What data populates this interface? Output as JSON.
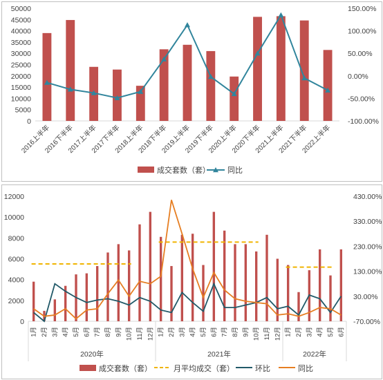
{
  "colors": {
    "bar": "#c0504d",
    "line_top": "#31859c",
    "avg_line": "#f0b400",
    "mom_line": "#215968",
    "yoy_line": "#e67e22",
    "axis": "#d9d9d9",
    "text": "#404040"
  },
  "chart_data": [
    {
      "type": "bar",
      "categories": [
        "2016上半年",
        "2016下半年",
        "2017上半年",
        "2017下半年",
        "2018上半年",
        "2018下半年",
        "2019上半年",
        "2019下半年",
        "2020上半年",
        "2020下半年",
        "2021上半年",
        "2021下半年",
        "2022上半年"
      ],
      "series": [
        {
          "name": "成交套数（套）",
          "kind": "bar",
          "axis": "left",
          "values": [
            39000,
            44800,
            24000,
            22800,
            15600,
            31800,
            33800,
            31000,
            19700,
            46200,
            46500,
            44600,
            31500
          ]
        },
        {
          "name": "同比",
          "kind": "line",
          "axis": "right",
          "values": [
            -15,
            -30,
            -38,
            -49,
            -35,
            37,
            113,
            -2,
            -40,
            50,
            135,
            -5,
            -32
          ]
        }
      ],
      "ylim_left": [
        0,
        50000
      ],
      "yticks_left": [
        "0",
        "5000",
        "10000",
        "15000",
        "20000",
        "25000",
        "30000",
        "35000",
        "40000",
        "45000",
        "50000"
      ],
      "ylim_right": [
        -100,
        150
      ],
      "yticks_right": [
        "-100.00%",
        "-50.00%",
        "0.00%",
        "50.00%",
        "100.00%",
        "150.00%"
      ],
      "legend": {
        "bar": "成交套数（套）",
        "line": "同比"
      },
      "legend_position": "bottom",
      "grid": false
    },
    {
      "type": "bar",
      "categories": [
        "1月",
        "2月",
        "3月",
        "4月",
        "5月",
        "6月",
        "7月",
        "8月",
        "9月",
        "10月",
        "11月",
        "12月",
        "1月",
        "2月",
        "3月",
        "4月",
        "5月",
        "6月",
        "7月",
        "8月",
        "9月",
        "10月",
        "11月",
        "12月",
        "1月",
        "2月",
        "3月",
        "4月",
        "5月",
        "6月"
      ],
      "year_labels": [
        "2020年",
        "2021年",
        "2022年"
      ],
      "series": [
        {
          "name": "成交套数（套）",
          "kind": "bar",
          "axis": "left",
          "values": [
            3800,
            1000,
            2100,
            3400,
            4500,
            4600,
            5300,
            6600,
            7400,
            6800,
            9300,
            10500,
            8100,
            5300,
            8300,
            8400,
            5400,
            10500,
            8700,
            7400,
            7400,
            6700,
            8300,
            6000,
            5400,
            2800,
            4900,
            6900,
            4400,
            6900
          ]
        },
        {
          "name": "月平均成交（套）",
          "kind": "dashed",
          "axis": "left",
          "segments": [
            {
              "from": 0,
              "to": 9,
              "value": 5500
            },
            {
              "from": 12,
              "to": 21,
              "value": 7600
            },
            {
              "from": 24,
              "to": 28,
              "value": 5200
            }
          ]
        },
        {
          "name": "环比",
          "kind": "line",
          "axis": "right",
          "values": [
            -35,
            -70,
            80,
            50,
            25,
            5,
            15,
            20,
            10,
            -5,
            25,
            10,
            -25,
            -35,
            45,
            5,
            -30,
            80,
            -15,
            -15,
            -5,
            5,
            25,
            -20,
            -10,
            -45,
            35,
            20,
            -35,
            30
          ]
        },
        {
          "name": "同比",
          "kind": "line",
          "axis": "right",
          "values": [
            -20,
            -50,
            -45,
            -20,
            -60,
            -25,
            -20,
            40,
            95,
            30,
            90,
            80,
            110,
            415,
            280,
            140,
            25,
            125,
            55,
            20,
            10,
            5,
            0,
            -45,
            -40,
            -50,
            -35,
            -15,
            -20,
            -45
          ]
        }
      ],
      "ylim_left": [
        0,
        12000
      ],
      "yticks_left": [
        "0",
        "2000",
        "4000",
        "6000",
        "8000",
        "10000",
        "12000"
      ],
      "ylim_right": [
        -70,
        430
      ],
      "yticks_right": [
        "-70.00%",
        "30.00%",
        "130.00%",
        "230.00%",
        "330.00%",
        "430.00%"
      ],
      "legend": {
        "bar": "成交套数（套）",
        "avg": "月平均成交（套）",
        "mom": "环比",
        "yoy": "同比"
      },
      "legend_position": "bottom",
      "grid": false
    }
  ]
}
